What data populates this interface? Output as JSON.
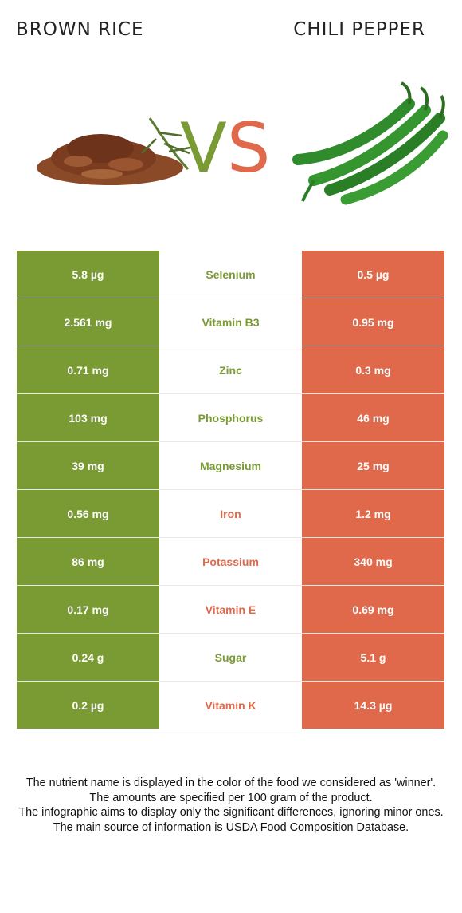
{
  "header": {
    "left_food": "BROWN RICE",
    "vs_v": "V",
    "vs_s": "S",
    "right_food": "CHILI PEPPER"
  },
  "colors": {
    "winner_left": "#7a9b34",
    "winner_right": "#e0694b"
  },
  "rows": [
    {
      "left": "5.8 µg",
      "nutrient": "Selenium",
      "right": "0.5 µg",
      "winner": "left"
    },
    {
      "left": "2.561 mg",
      "nutrient": "Vitamin B3",
      "right": "0.95 mg",
      "winner": "left"
    },
    {
      "left": "0.71 mg",
      "nutrient": "Zinc",
      "right": "0.3 mg",
      "winner": "left"
    },
    {
      "left": "103 mg",
      "nutrient": "Phosphorus",
      "right": "46 mg",
      "winner": "left"
    },
    {
      "left": "39 mg",
      "nutrient": "Magnesium",
      "right": "25 mg",
      "winner": "left"
    },
    {
      "left": "0.56 mg",
      "nutrient": "Iron",
      "right": "1.2 mg",
      "winner": "right"
    },
    {
      "left": "86 mg",
      "nutrient": "Potassium",
      "right": "340 mg",
      "winner": "right"
    },
    {
      "left": "0.17 mg",
      "nutrient": "Vitamin E",
      "right": "0.69 mg",
      "winner": "right"
    },
    {
      "left": "0.24 g",
      "nutrient": "Sugar",
      "right": "5.1 g",
      "winner": "left"
    },
    {
      "left": "0.2 µg",
      "nutrient": "Vitamin K",
      "right": "14.3 µg",
      "winner": "right"
    }
  ],
  "footnotes": [
    "The nutrient name is displayed in the color of the food we considered as 'winner'.",
    "The amounts are specified per 100 gram of the product.",
    "The infographic aims to display only the significant differences, ignoring minor ones.",
    "The main source of information is USDA Food Composition Database."
  ]
}
